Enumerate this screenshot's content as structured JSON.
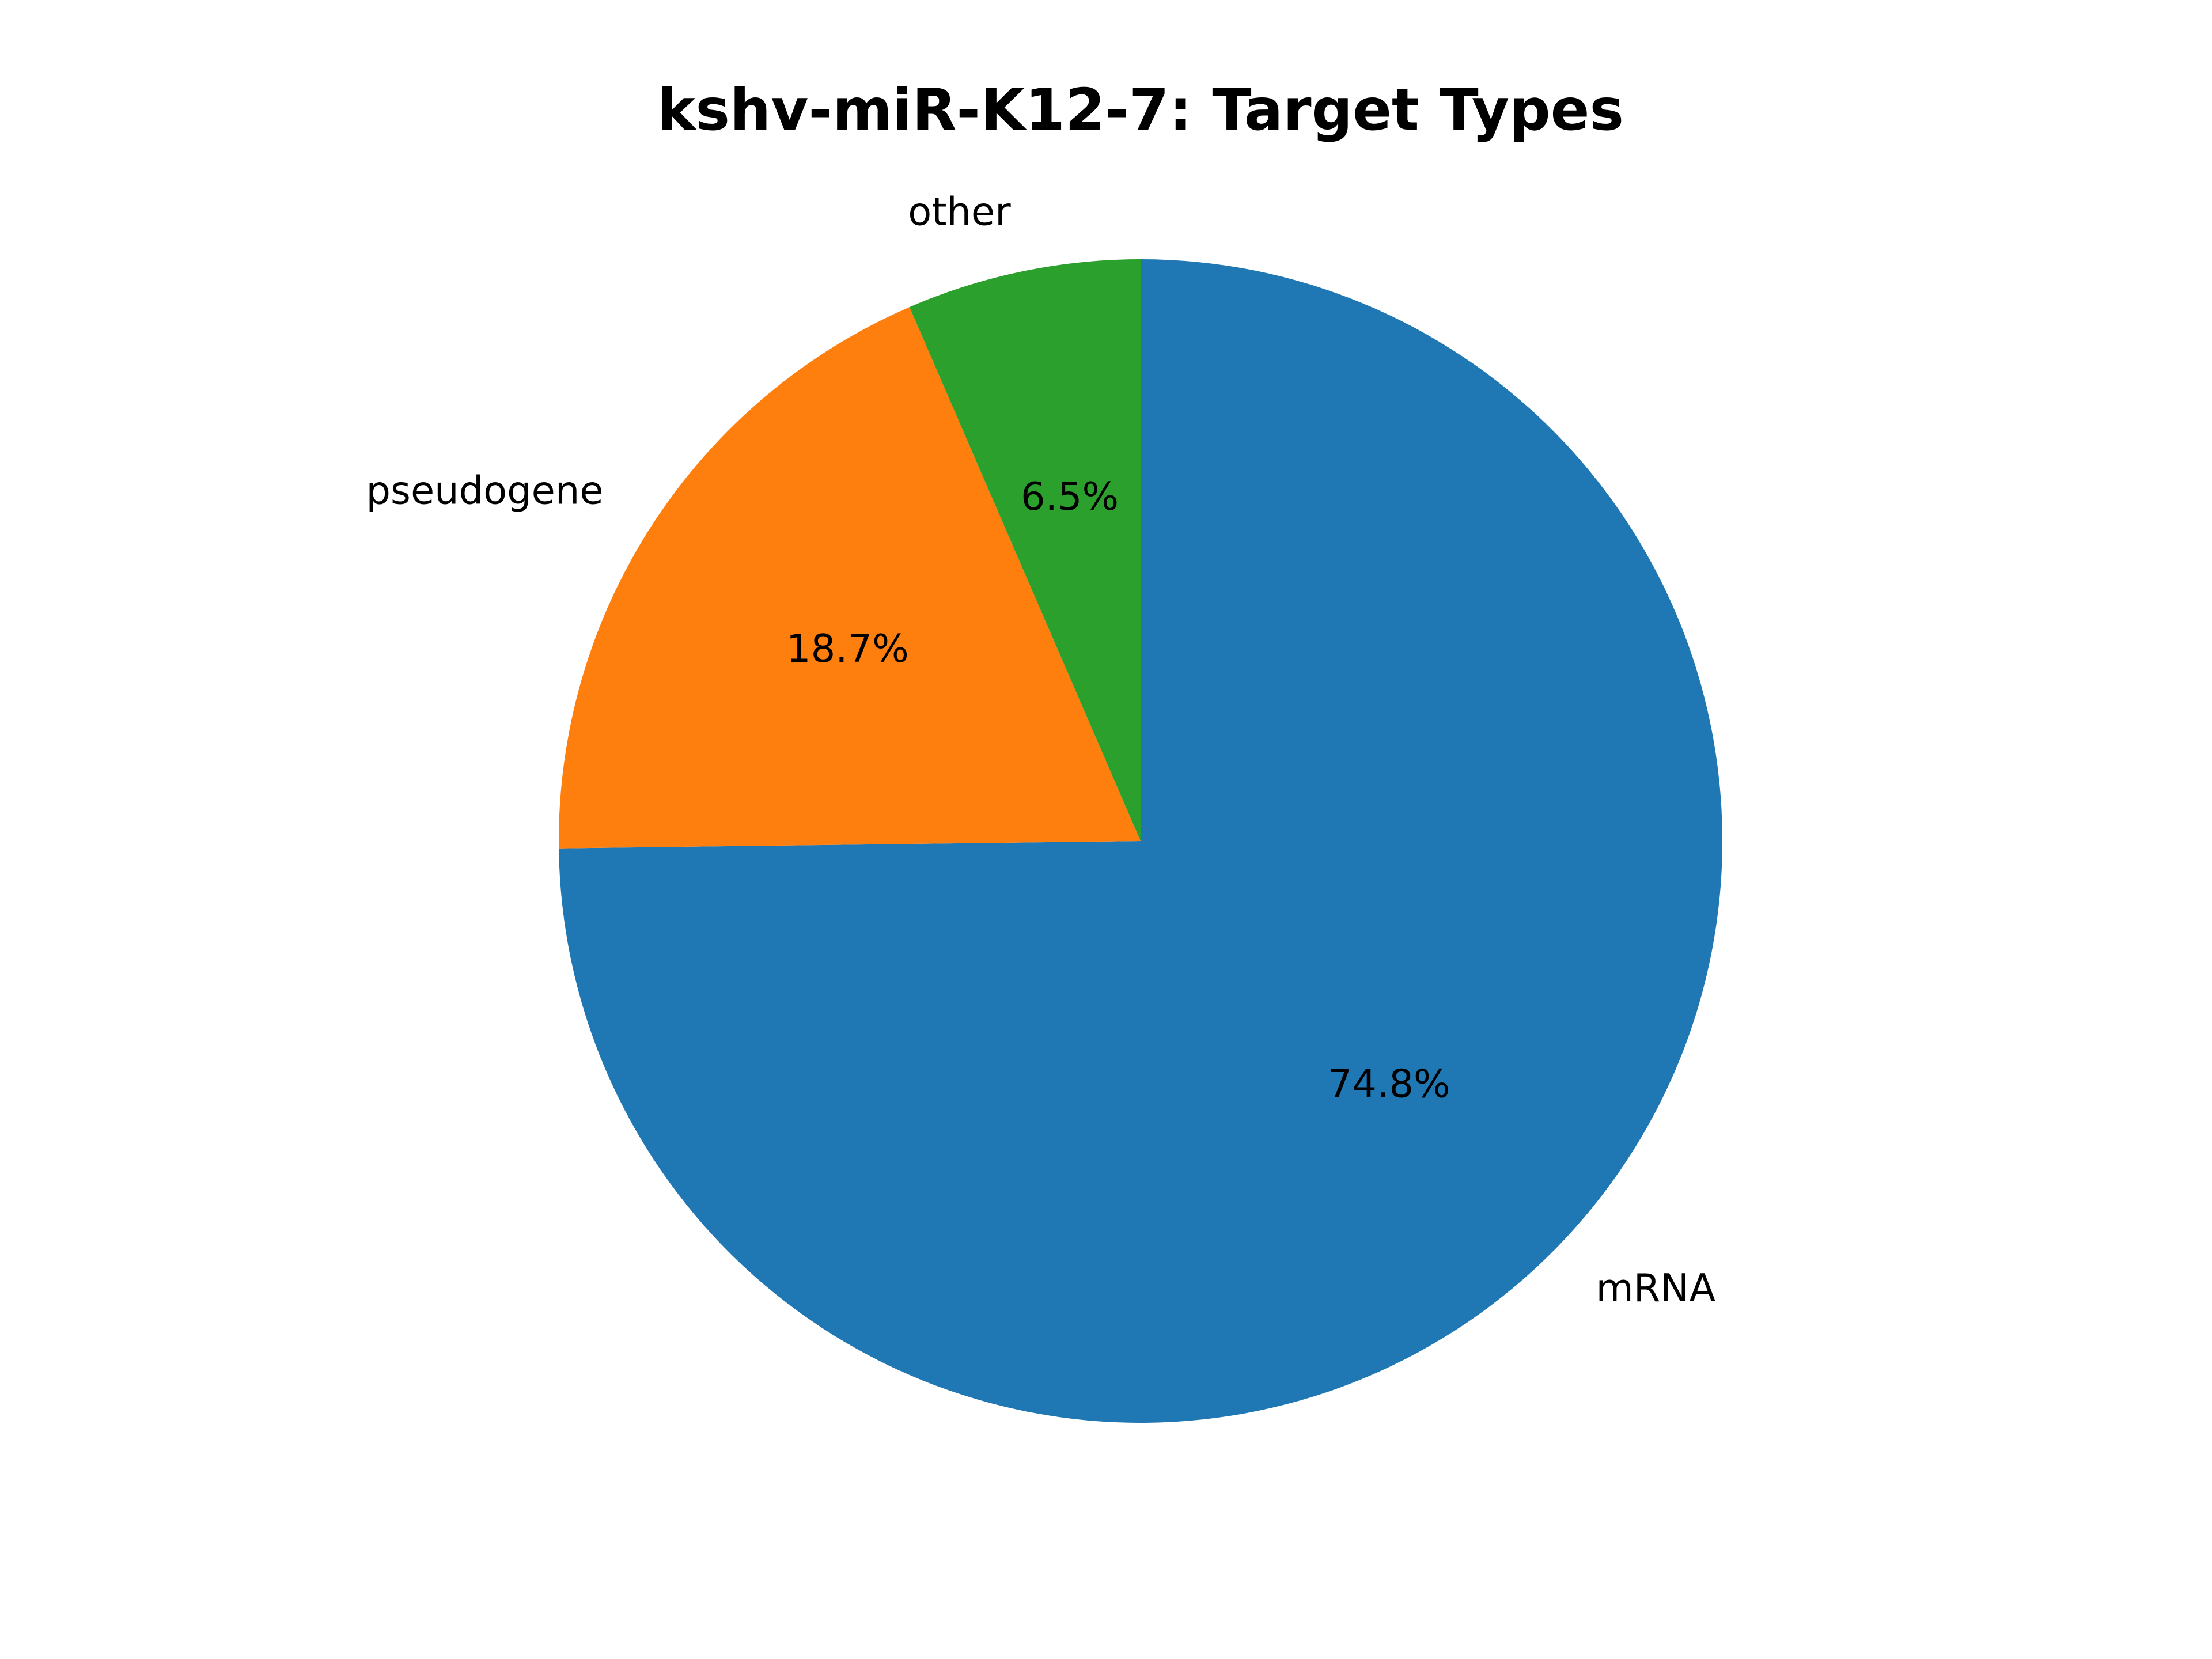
{
  "chart_data": {
    "type": "pie",
    "title": "kshv-miR-K12-7: Target Types",
    "slices": [
      {
        "label": "mRNA",
        "value": 74.8,
        "pct_label": "74.8%",
        "color": "#1f77b4"
      },
      {
        "label": "pseudogene",
        "value": 18.7,
        "pct_label": "18.7%",
        "color": "#ff7f0e"
      },
      {
        "label": "other",
        "value": 6.5,
        "pct_label": "6.5%",
        "color": "#2ca02c"
      }
    ],
    "start_angle_deg": 90,
    "direction": "clockwise",
    "legend": "none"
  }
}
